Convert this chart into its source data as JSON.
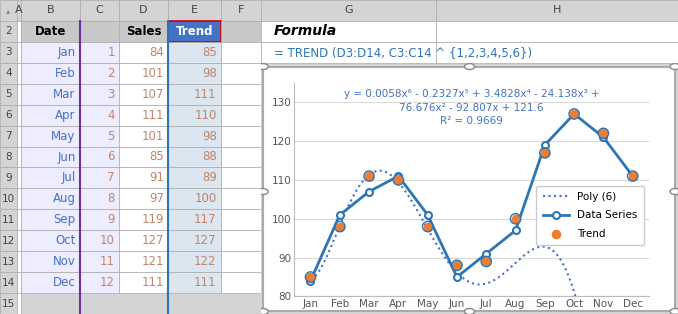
{
  "months": [
    "Jan",
    "Feb",
    "Mar",
    "Apr",
    "May",
    "Jun",
    "Jul",
    "Aug",
    "Sep",
    "Oct",
    "Nov",
    "Dec"
  ],
  "x": [
    1,
    2,
    3,
    4,
    5,
    6,
    7,
    8,
    9,
    10,
    11,
    12
  ],
  "sales": [
    84,
    101,
    107,
    111,
    101,
    85,
    91,
    97,
    119,
    127,
    121,
    111
  ],
  "trend": [
    85,
    98,
    111,
    110,
    98,
    88,
    89,
    100,
    117,
    127,
    122,
    111
  ],
  "poly_coeffs": [
    0.0058,
    -0.2327,
    3.4828,
    -24.138,
    76.676,
    -92.807,
    121.6
  ],
  "equation_line1": "y = 0.0058x⁶ - 0.2327x⁵ + 3.4828x⁴ - 24.138x³ +",
  "equation_line2": "76.676x² - 92.807x + 121.6",
  "r_squared": "R² = 0.9669",
  "ylim": [
    80,
    135
  ],
  "yticks": [
    80,
    90,
    100,
    110,
    120,
    130
  ],
  "data_series_color": "#2E75B6",
  "trend_color": "#ED7D31",
  "poly_color": "#4472C4",
  "equation_color": "#4472C4",
  "bg_color": "#D4D4D4",
  "grid_color": "#D9D9D9",
  "title_text": "Formula",
  "formula_text": "= TREND (D3:D14, C3:C14 ^ {1,2,3,4,5,6})",
  "legend_labels": [
    "Data Series",
    "Trend",
    "Poly (6)"
  ],
  "col_header_bg": "#D4D4D4",
  "row_header_bg": "#D4D4D4",
  "date_col_bg": "#EDEDFF",
  "num_col_bg": "#EDEDFF",
  "sales_col_bg": "#FFFFFF",
  "trend_col_bg": "#DCE6F1",
  "date_col_color": "#4472C4",
  "num_col_color": "#C0856A",
  "sales_col_color": "#C0856A",
  "trend_col_color": "#C0856A",
  "trend_header_bg": "#4472C4",
  "trend_header_color": "#FFFFFF"
}
